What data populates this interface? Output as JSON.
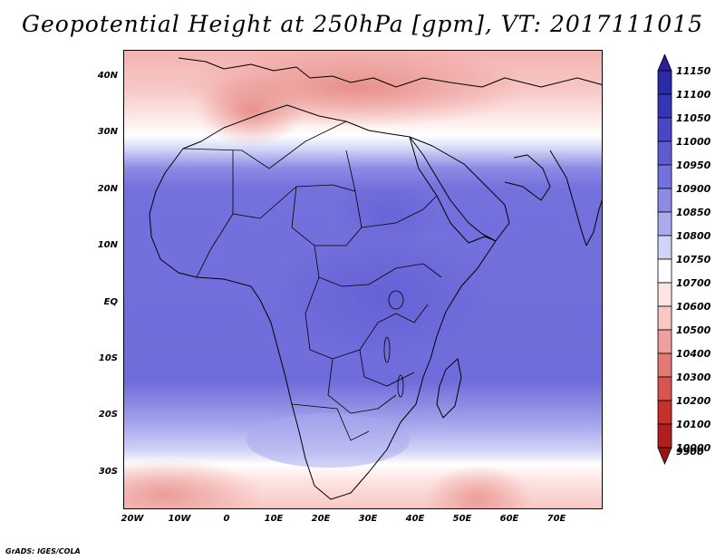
{
  "title": "Geopotential Height at 250hPa [gpm], VT: 2017111015",
  "footer": "GrADS: IGES/COLA",
  "map": {
    "lat_labels": [
      "40N",
      "30N",
      "20N",
      "10N",
      "EQ",
      "10S",
      "20S",
      "30S"
    ],
    "lon_labels": [
      "20W",
      "10W",
      "0",
      "10E",
      "20E",
      "30E",
      "40E",
      "50E",
      "60E",
      "70E"
    ],
    "extent": {
      "lon_min": -22,
      "lon_max": 79,
      "lat_min": -37,
      "lat_max": 45
    }
  },
  "colorbar": {
    "levels": [
      "11150",
      "11100",
      "11050",
      "11000",
      "10950",
      "10900",
      "10850",
      "10800",
      "10750",
      "10700",
      "10600",
      "10500",
      "10400",
      "10300",
      "10200",
      "10100",
      "10000",
      "9900"
    ],
    "colors": [
      "#2a1e9a",
      "#2c2aa8",
      "#3535b8",
      "#4a47c6",
      "#5f5cd3",
      "#7371dc",
      "#8c8be3",
      "#aaaaee",
      "#d2d4f7",
      "#ffffff",
      "#fde5e3",
      "#f8c6c3",
      "#efa09c",
      "#e47a76",
      "#d9534f",
      "#c8302d",
      "#b21e1f",
      "#9a1415"
    ]
  }
}
